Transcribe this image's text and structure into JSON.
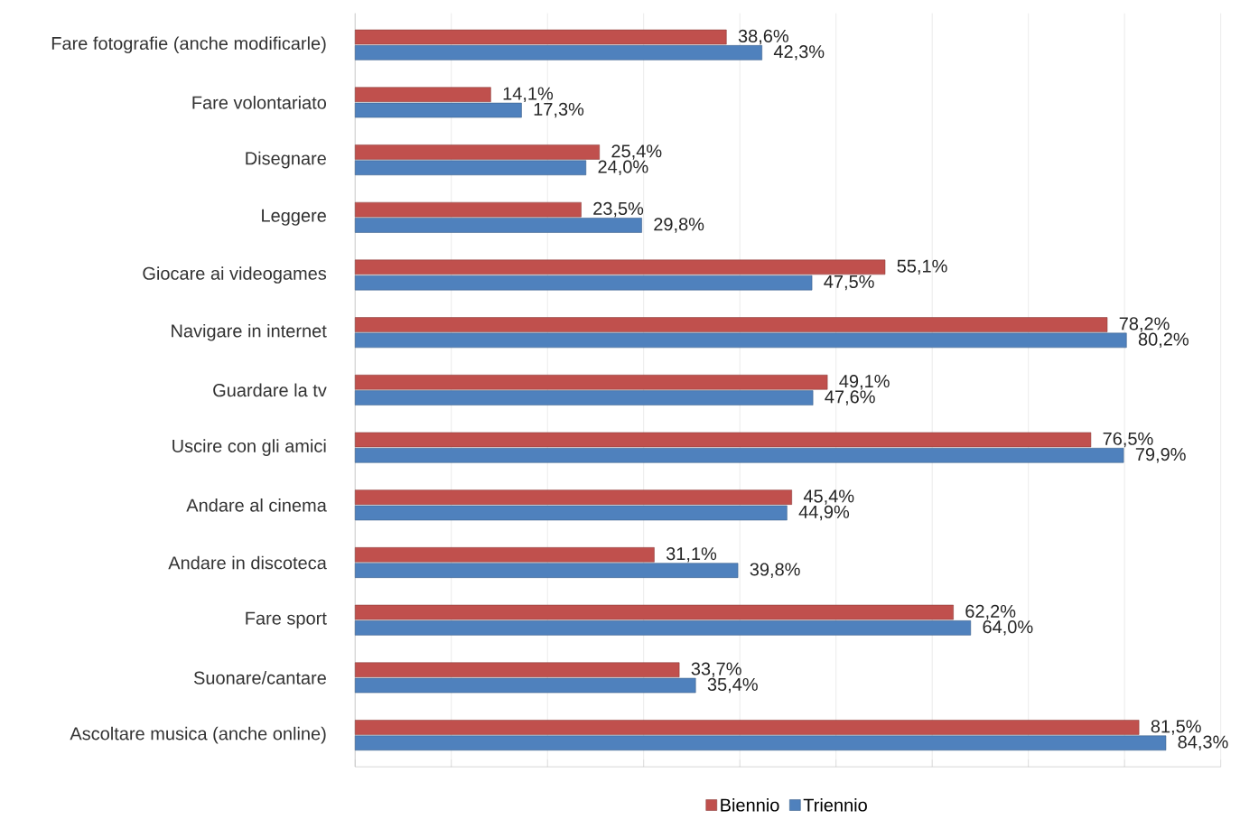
{
  "chart_data": {
    "type": "bar",
    "orientation": "horizontal",
    "categories": [
      "Fare fotografie (anche modificarle)",
      "Fare volontariato",
      "Disegnare",
      "Leggere",
      "Giocare ai videogames",
      "Navigare in internet",
      "Guardare la tv",
      "Uscire con gli amici",
      "Andare al cinema",
      "Andare in discoteca",
      "Fare sport",
      "Suonare/cantare",
      "Ascoltare musica (anche online)"
    ],
    "series": [
      {
        "name": "Biennio",
        "color": "#c0504d",
        "values": [
          38.6,
          14.1,
          25.4,
          23.5,
          55.1,
          78.2,
          49.1,
          76.5,
          45.4,
          31.1,
          62.2,
          33.7,
          81.5
        ],
        "value_labels": [
          "38,6%",
          "14,1%",
          "25,4%",
          "23,5%",
          "55,1%",
          "78,2%",
          "49,1%",
          "76,5%",
          "45,4%",
          "31,1%",
          "62,2%",
          "33,7%",
          "81,5%"
        ]
      },
      {
        "name": "Triennio",
        "color": "#4f81bd",
        "values": [
          42.3,
          17.3,
          24.0,
          29.8,
          47.5,
          80.2,
          47.6,
          79.9,
          44.9,
          39.8,
          64.0,
          35.4,
          84.3
        ],
        "value_labels": [
          "42,3%",
          "17,3%",
          "24,0%",
          "29,8%",
          "47,5%",
          "80,2%",
          "47,6%",
          "79,9%",
          "44,9%",
          "39,8%",
          "64,0%",
          "35,4%",
          "84,3%"
        ]
      }
    ],
    "xlim": [
      0,
      90
    ],
    "xticks": [
      {
        "value": 0,
        "label": null
      },
      {
        "value": 10,
        "label": null
      },
      {
        "value": 20,
        "label": null
      },
      {
        "value": 30,
        "label": null
      },
      {
        "value": 40,
        "label": null
      },
      {
        "value": 50,
        "label": null
      },
      {
        "value": 60,
        "label": null
      },
      {
        "value": 70,
        "label": null
      },
      {
        "value": 80,
        "label": null
      },
      {
        "value": 90,
        "label": null
      }
    ],
    "grid": "x",
    "legend": "bottom",
    "tick_labels": "y"
  }
}
